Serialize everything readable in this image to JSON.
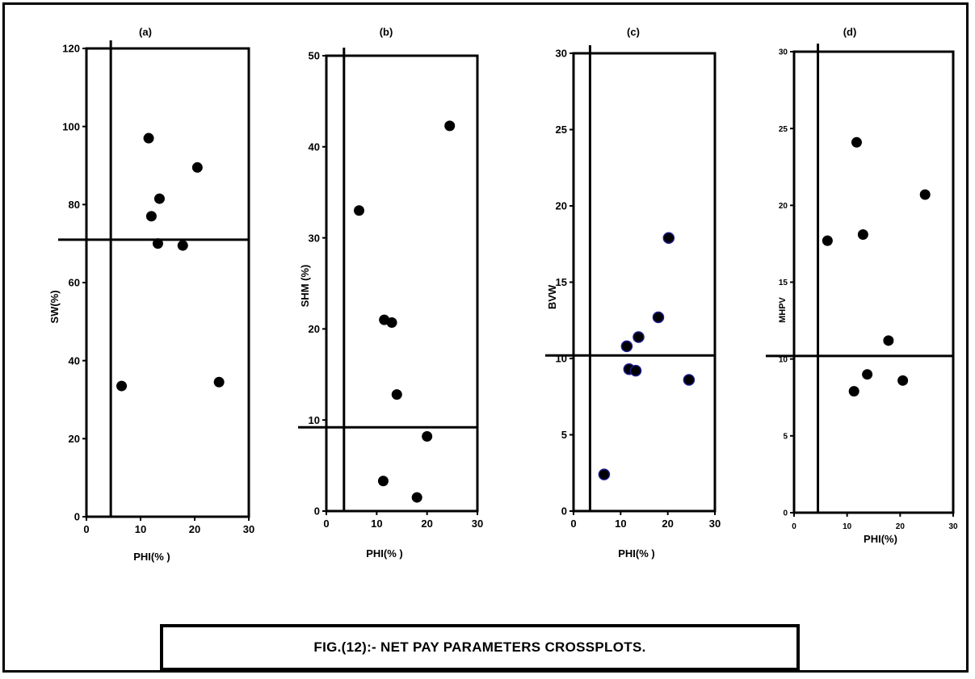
{
  "caption": "FIG.(12):- NET PAY PARAMETERS CROSSPLOTS.",
  "colors": {
    "frame": "#000000",
    "marker": "#000000",
    "marker_outline_c": "#1a1a8c"
  },
  "chart_data": [
    {
      "type": "scatter",
      "title": "(a)",
      "xlabel": "PHI(% )",
      "ylabel": "SW(%)",
      "xlim": [
        0,
        30
      ],
      "ylim": [
        0,
        120
      ],
      "xticks": [
        "0",
        "10",
        "20",
        "30"
      ],
      "yticks": [
        "0",
        "20",
        "40",
        "60",
        "80",
        "100",
        "120"
      ],
      "cutoff_x": 4.5,
      "cutoff_y": 71,
      "x": [
        6.5,
        11.5,
        12,
        13.5,
        13.2,
        17.8,
        20.5,
        24.5
      ],
      "y": [
        33.5,
        97,
        77,
        81.5,
        70,
        69.5,
        89.5,
        34.5
      ]
    },
    {
      "type": "scatter",
      "title": "(b)",
      "xlabel": "PHI(% )",
      "ylabel": "SHM (%)",
      "xlim": [
        0,
        30
      ],
      "ylim": [
        0,
        50
      ],
      "xticks": [
        "0",
        "10",
        "20",
        "30"
      ],
      "yticks": [
        "0",
        "10",
        "20",
        "30",
        "40",
        "50"
      ],
      "cutoff_x": 3.5,
      "cutoff_y": 9.2,
      "x": [
        6.5,
        11.5,
        13,
        14,
        11.3,
        18,
        20,
        24.5
      ],
      "y": [
        33,
        21,
        20.7,
        12.8,
        3.3,
        1.5,
        8.2,
        42.3
      ]
    },
    {
      "type": "scatter",
      "title": "(c)",
      "xlabel": "PHI(% )",
      "ylabel": "BVW",
      "xlim": [
        0,
        30
      ],
      "ylim": [
        0,
        30
      ],
      "xticks": [
        "0",
        "10",
        "20",
        "30"
      ],
      "yticks": [
        "0",
        "5",
        "10",
        "15",
        "20",
        "25",
        "30"
      ],
      "cutoff_x": 3.5,
      "cutoff_y": 10.2,
      "x": [
        6.5,
        11.3,
        11.8,
        13.2,
        13.8,
        18,
        20.2,
        24.5
      ],
      "y": [
        2.4,
        10.8,
        9.3,
        9.2,
        11.4,
        12.7,
        17.9,
        8.6
      ]
    },
    {
      "type": "scatter",
      "title": "(d)",
      "xlabel": "PHI(%)",
      "ylabel": "MHPV",
      "xlim": [
        0,
        30
      ],
      "ylim": [
        0,
        30
      ],
      "xticks": [
        "0",
        "10",
        "20",
        "30"
      ],
      "yticks": [
        "0",
        "5",
        "10",
        "15",
        "20",
        "25",
        "30"
      ],
      "cutoff_x": 4.5,
      "cutoff_y": 10.2,
      "x": [
        6.3,
        11.3,
        11.8,
        13,
        13.8,
        17.8,
        20.5,
        24.7
      ],
      "y": [
        17.7,
        7.9,
        24.1,
        18.1,
        9,
        11.2,
        8.6,
        20.7
      ]
    }
  ]
}
